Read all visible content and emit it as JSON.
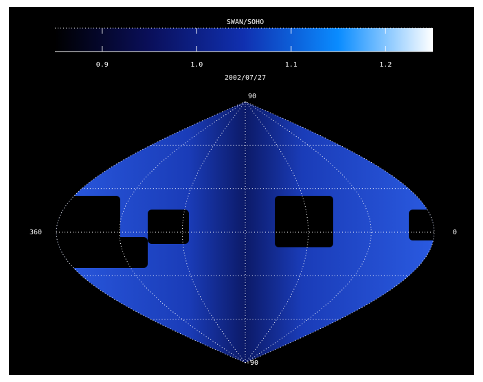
{
  "chart_data": {
    "type": "map",
    "title": "SWAN/SOHO",
    "date": "2002/07/27",
    "colorbar": {
      "lim": [
        0.85,
        1.25
      ],
      "ticks": [
        0.9,
        {
          "value": 1,
          "label": "1.0"
        },
        1.1,
        1.2
      ],
      "colors": [
        "#000000",
        "#0a0f5a",
        "#1030b0",
        "#0a8cff",
        "#ffffff"
      ]
    },
    "xlim": [
      360,
      0
    ],
    "ylim": [
      -90,
      90
    ],
    "xticks": [
      360,
      0
    ],
    "yticks": [
      90,
      -90
    ],
    "lat_grid": [
      -60,
      -30,
      0,
      30,
      60
    ],
    "lon_grid": [
      60,
      120,
      180,
      240,
      300
    ]
  }
}
